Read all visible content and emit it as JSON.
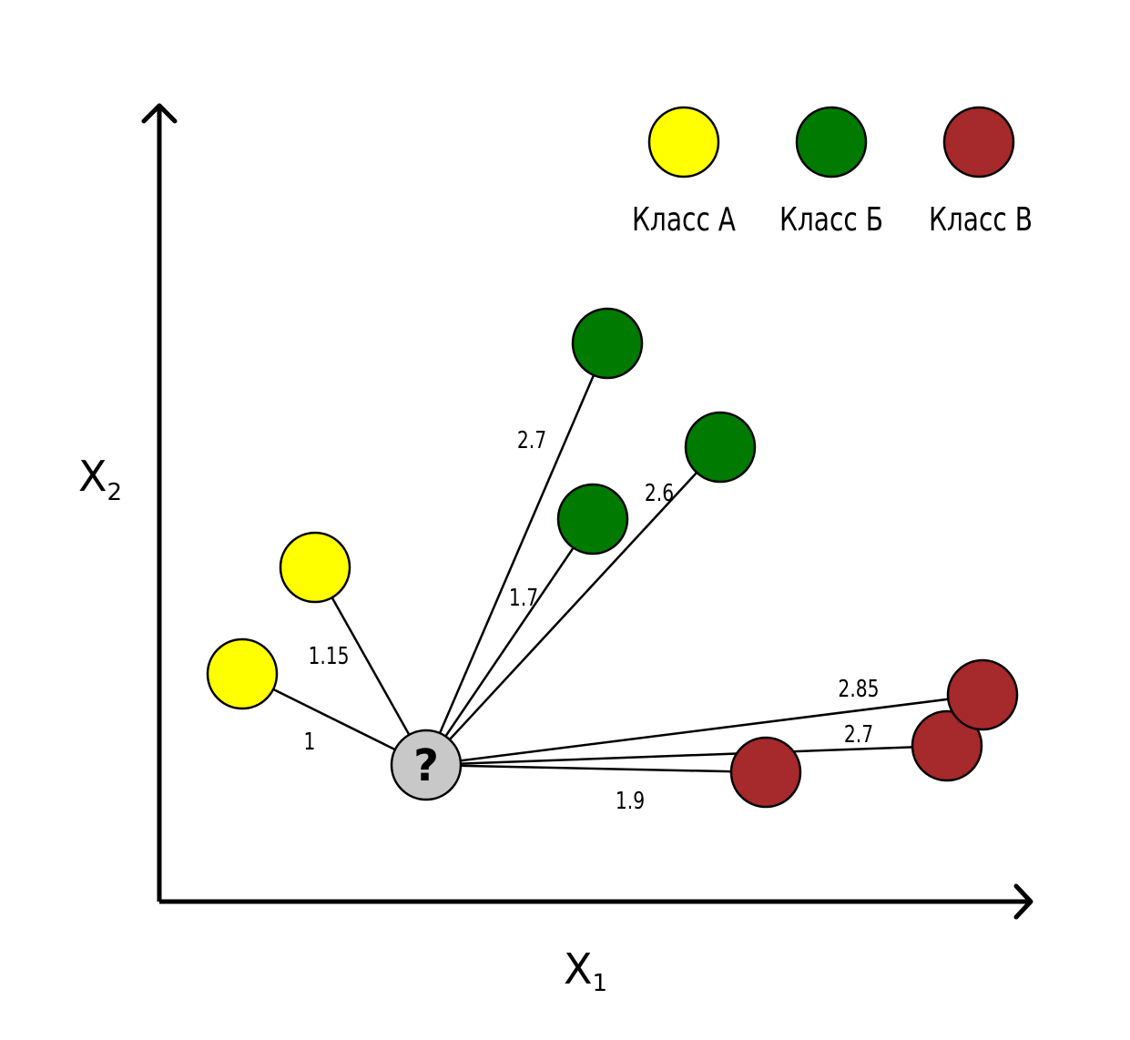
{
  "axes": {
    "x_label": "X",
    "x_subscript": "1",
    "y_label": "X",
    "y_subscript": "2"
  },
  "legend": [
    {
      "label": "Класс А",
      "color": "#ffff00"
    },
    {
      "label": "Класс Б",
      "color": "#007a00"
    },
    {
      "label": "Класс В",
      "color": "#a6292b"
    }
  ],
  "query_point": {
    "symbol": "?",
    "color": "#c8c8c8"
  },
  "distances": {
    "a1": "1",
    "a2": "1.15",
    "b1": "1.7",
    "b2": "2.7",
    "b3": "2.6",
    "c1": "1.9",
    "c2": "2.7",
    "c3": "2.85"
  }
}
